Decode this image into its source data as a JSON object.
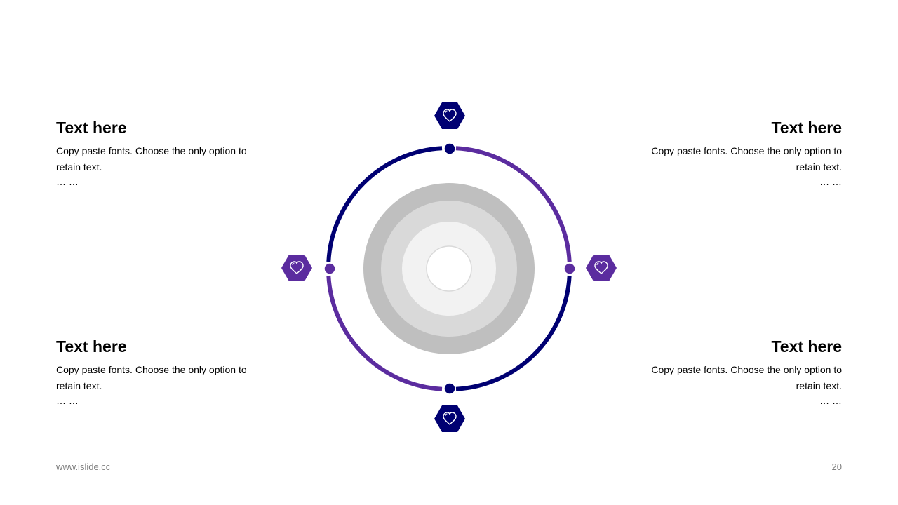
{
  "blocks": [
    {
      "title": "Text here",
      "body": "Copy paste fonts. Choose the only option to retain text.",
      "more": "… …"
    },
    {
      "title": "Text here",
      "body": "Copy paste fonts. Choose the only option to retain text.",
      "more": "… …"
    },
    {
      "title": "Text here",
      "body": "Copy paste fonts. Choose the only option to retain text.",
      "more": "… …"
    },
    {
      "title": "Text here",
      "body": "Copy paste fonts. Choose the only option to retain text.",
      "more": "… …"
    }
  ],
  "footer": {
    "website": "www.islide.cc",
    "page_number": "20"
  },
  "colors": {
    "navy": "#000072",
    "purple": "#5b2c9f",
    "gray_outer": "#bfbfbf",
    "gray_mid": "#d9d9d9",
    "gray_inner": "#f2f2f2"
  },
  "icons": [
    "heart-icon",
    "heart-icon",
    "heart-icon",
    "heart-icon"
  ]
}
